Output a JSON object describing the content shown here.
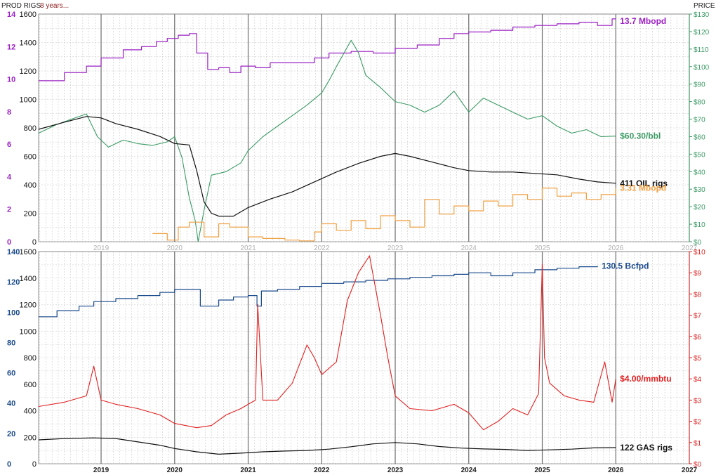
{
  "header": {
    "left_label": "PROD RIGS",
    "note": "8 years...",
    "right_label": "PRICE"
  },
  "colors": {
    "oil_production": "#9b21c4",
    "oil_price": "#3a9a64",
    "oil_rigs": "#111111",
    "ffo": "#f0a040",
    "gas_production": "#1a4a8c",
    "gas_price": "#e02020",
    "gas_rigs": "#111111",
    "grid_major": "#6e6e6e",
    "grid_minor": "#c8c8c8"
  },
  "chart_data": [
    {
      "type": "line",
      "panel": "oil",
      "x_ticks": [
        "2019",
        "2020",
        "2021",
        "2022",
        "2023",
        "2024",
        "2025",
        "2026",
        "2027"
      ],
      "xlim": [
        2018.15,
        2027.0
      ],
      "left_axis_outer": {
        "ticks": [
          0,
          2,
          4,
          6,
          8,
          10,
          12,
          14
        ],
        "color": "#9b21c4"
      },
      "left_axis_inner": {
        "ticks": [
          0,
          200,
          400,
          600,
          800,
          1000,
          1200,
          1400,
          1600
        ],
        "color": "#111111"
      },
      "right_axis": {
        "ticks": [
          "$0",
          "$10",
          "$20",
          "$30",
          "$40",
          "$50",
          "$60",
          "$70",
          "$80",
          "$90",
          "$100",
          "$110",
          "$120",
          "$130"
        ],
        "color": "#3a9a64"
      },
      "ylim_rigs": [
        0,
        1600
      ],
      "ylim_price": [
        0,
        130
      ],
      "ylim_prod": [
        0,
        14
      ],
      "annotations": {
        "production": "13.7 Mbopd",
        "price": "$60.30/bbl",
        "rigs": "411 OIL rigs",
        "ffo": "3.31 Mbopd"
      },
      "series": [
        {
          "name": "13.7 Mbopd",
          "axis": "prod",
          "color": "#9b21c4",
          "step": true,
          "x": [
            2018.15,
            2018.5,
            2018.8,
            2019.0,
            2019.3,
            2019.55,
            2019.75,
            2019.9,
            2020.05,
            2020.2,
            2020.3,
            2020.45,
            2020.6,
            2020.75,
            2020.9,
            2021.1,
            2021.3,
            2021.6,
            2021.9,
            2022.1,
            2022.4,
            2022.7,
            2023.0,
            2023.3,
            2023.6,
            2023.8,
            2024.0,
            2024.3,
            2024.6,
            2024.9,
            2025.2,
            2025.5,
            2025.75,
            2025.95,
            2026.0
          ],
          "values": [
            9.9,
            10.4,
            10.8,
            11.3,
            11.8,
            12.0,
            12.3,
            12.5,
            12.7,
            12.8,
            11.6,
            10.6,
            10.7,
            10.4,
            10.8,
            10.7,
            11.0,
            11.0,
            11.3,
            11.6,
            11.7,
            11.6,
            11.9,
            12.1,
            12.5,
            12.8,
            12.9,
            13.0,
            13.2,
            13.3,
            13.4,
            13.5,
            13.3,
            13.7,
            13.7
          ]
        },
        {
          "name": "$60.30/bbl",
          "axis": "price",
          "color": "#3a9a64",
          "x": [
            2018.15,
            2018.4,
            2018.6,
            2018.8,
            2018.95,
            2019.1,
            2019.3,
            2019.5,
            2019.7,
            2019.9,
            2020.0,
            2020.1,
            2020.2,
            2020.28,
            2020.32,
            2020.4,
            2020.5,
            2020.7,
            2020.9,
            2021.0,
            2021.2,
            2021.4,
            2021.6,
            2021.8,
            2022.0,
            2022.1,
            2022.2,
            2022.4,
            2022.5,
            2022.6,
            2022.8,
            2023.0,
            2023.2,
            2023.4,
            2023.6,
            2023.8,
            2024.0,
            2024.2,
            2024.4,
            2024.6,
            2024.8,
            2025.0,
            2025.2,
            2025.4,
            2025.6,
            2025.8,
            2026.0
          ],
          "values": [
            62,
            67,
            70,
            73,
            60,
            54,
            58,
            56,
            55,
            57,
            60,
            48,
            25,
            12,
            -20,
            18,
            38,
            40,
            45,
            52,
            60,
            66,
            72,
            78,
            85,
            92,
            100,
            115,
            108,
            95,
            88,
            80,
            78,
            74,
            78,
            86,
            74,
            82,
            78,
            74,
            70,
            72,
            66,
            62,
            64,
            60,
            60.3
          ]
        },
        {
          "name": "411 OIL rigs",
          "axis": "rigs",
          "color": "#111111",
          "x": [
            2018.15,
            2018.5,
            2018.8,
            2019.0,
            2019.2,
            2019.5,
            2019.8,
            2020.0,
            2020.2,
            2020.3,
            2020.4,
            2020.5,
            2020.6,
            2020.8,
            2021.0,
            2021.3,
            2021.6,
            2021.9,
            2022.2,
            2022.5,
            2022.8,
            2023.0,
            2023.2,
            2023.5,
            2023.8,
            2024.0,
            2024.3,
            2024.6,
            2024.9,
            2025.2,
            2025.5,
            2025.75,
            2026.0
          ],
          "values": [
            790,
            840,
            880,
            870,
            830,
            790,
            740,
            690,
            680,
            500,
            280,
            200,
            180,
            180,
            240,
            300,
            350,
            420,
            490,
            550,
            600,
            620,
            600,
            560,
            520,
            500,
            490,
            490,
            480,
            470,
            440,
            420,
            411
          ]
        },
        {
          "name": "3.31 Mbopd",
          "axis": "prod",
          "color": "#f0a040",
          "step": true,
          "x": [
            2019.7,
            2019.9,
            2020.05,
            2020.2,
            2020.4,
            2020.6,
            2020.75,
            2021.0,
            2021.2,
            2021.5,
            2021.7,
            2021.9,
            2022.0,
            2022.2,
            2022.4,
            2022.6,
            2022.8,
            2023.0,
            2023.2,
            2023.4,
            2023.6,
            2023.8,
            2024.0,
            2024.2,
            2024.4,
            2024.6,
            2024.8,
            2025.0,
            2025.2,
            2025.4,
            2025.6,
            2025.8,
            2026.0
          ],
          "values": [
            0.5,
            0.1,
            0.9,
            1.2,
            0.3,
            1.1,
            0.9,
            0.3,
            0.2,
            0.1,
            0.05,
            0.6,
            1.1,
            0.7,
            1.3,
            0.8,
            1.6,
            1.3,
            0.9,
            2.6,
            1.7,
            2.2,
            1.9,
            2.5,
            2.2,
            2.9,
            2.6,
            3.3,
            2.8,
            3.0,
            2.6,
            2.9,
            3.31
          ]
        }
      ]
    },
    {
      "type": "line",
      "panel": "gas",
      "x_ticks": [
        "2019",
        "2020",
        "2021",
        "2022",
        "2023",
        "2024",
        "2025",
        "2026",
        "2027"
      ],
      "xlim": [
        2018.15,
        2027.0
      ],
      "left_axis_outer": {
        "ticks": [
          0,
          20,
          40,
          60,
          80,
          100,
          120,
          140
        ],
        "color": "#1a4a8c"
      },
      "left_axis_inner": {
        "ticks": [
          0,
          200,
          400,
          600,
          800,
          1000,
          1200,
          1400,
          1600
        ],
        "color": "#111111"
      },
      "right_axis": {
        "ticks": [
          "$0",
          "$1",
          "$2",
          "$3",
          "$4",
          "$5",
          "$6",
          "$7",
          "$8",
          "$9",
          "$10"
        ],
        "color": "#e02020"
      },
      "ylim_rigs": [
        0,
        1600
      ],
      "ylim_price": [
        0,
        10
      ],
      "ylim_prod": [
        0,
        140
      ],
      "annotations": {
        "production": "130.5 Bcfpd",
        "price": "$4.00/mmbtu",
        "rigs": "122 GAS rigs"
      },
      "series": [
        {
          "name": "130.5 Bcfpd",
          "axis": "prod",
          "color": "#1a4a8c",
          "step": true,
          "x": [
            2018.15,
            2018.4,
            2018.7,
            2018.9,
            2019.2,
            2019.5,
            2019.8,
            2020.0,
            2020.2,
            2020.35,
            2020.6,
            2020.8,
            2021.0,
            2021.12,
            2021.18,
            2021.4,
            2021.7,
            2022.0,
            2022.3,
            2022.6,
            2022.9,
            2023.2,
            2023.5,
            2023.8,
            2024.0,
            2024.3,
            2024.6,
            2024.9,
            2025.2,
            2025.5,
            2025.75
          ],
          "values": [
            97,
            101,
            104,
            107,
            109,
            111,
            113,
            115,
            115,
            104,
            108,
            110,
            111,
            104,
            114,
            115,
            117,
            119,
            120,
            121,
            122,
            123,
            124,
            125,
            126,
            124,
            126,
            128,
            129,
            130,
            130.5
          ]
        },
        {
          "name": "$4.00/mmbtu",
          "axis": "price",
          "color": "#e02020",
          "x": [
            2018.15,
            2018.5,
            2018.8,
            2018.9,
            2019.0,
            2019.2,
            2019.5,
            2019.8,
            2020.0,
            2020.3,
            2020.5,
            2020.7,
            2020.9,
            2021.0,
            2021.1,
            2021.13,
            2021.2,
            2021.4,
            2021.6,
            2021.8,
            2021.9,
            2022.0,
            2022.2,
            2022.35,
            2022.5,
            2022.65,
            2022.8,
            2022.9,
            2023.0,
            2023.2,
            2023.5,
            2023.8,
            2024.0,
            2024.2,
            2024.4,
            2024.6,
            2024.8,
            2024.95,
            2025.0,
            2025.03,
            2025.1,
            2025.3,
            2025.5,
            2025.7,
            2025.85,
            2025.95,
            2026.0
          ],
          "values": [
            2.7,
            2.9,
            3.2,
            4.6,
            3.0,
            2.8,
            2.6,
            2.3,
            1.9,
            1.7,
            1.8,
            2.3,
            2.6,
            2.8,
            3.0,
            7.5,
            3.0,
            3.0,
            3.8,
            5.6,
            5.0,
            4.2,
            4.8,
            7.7,
            9.0,
            9.8,
            7.0,
            5.0,
            3.2,
            2.6,
            2.5,
            2.8,
            2.4,
            1.6,
            2.0,
            2.6,
            2.3,
            3.3,
            9.4,
            5.0,
            3.8,
            3.2,
            3.0,
            2.9,
            4.8,
            2.9,
            4.0
          ]
        },
        {
          "name": "122 GAS rigs",
          "axis": "rigs",
          "color": "#111111",
          "x": [
            2018.15,
            2018.5,
            2018.9,
            2019.2,
            2019.5,
            2019.8,
            2020.0,
            2020.3,
            2020.6,
            2020.9,
            2021.2,
            2021.5,
            2021.8,
            2022.1,
            2022.4,
            2022.7,
            2023.0,
            2023.3,
            2023.6,
            2023.9,
            2024.2,
            2024.5,
            2024.8,
            2025.1,
            2025.4,
            2025.7,
            2026.0
          ],
          "values": [
            180,
            190,
            195,
            190,
            165,
            140,
            115,
            90,
            72,
            80,
            90,
            96,
            100,
            110,
            128,
            150,
            160,
            150,
            130,
            118,
            112,
            108,
            100,
            105,
            110,
            120,
            122
          ]
        }
      ]
    }
  ]
}
